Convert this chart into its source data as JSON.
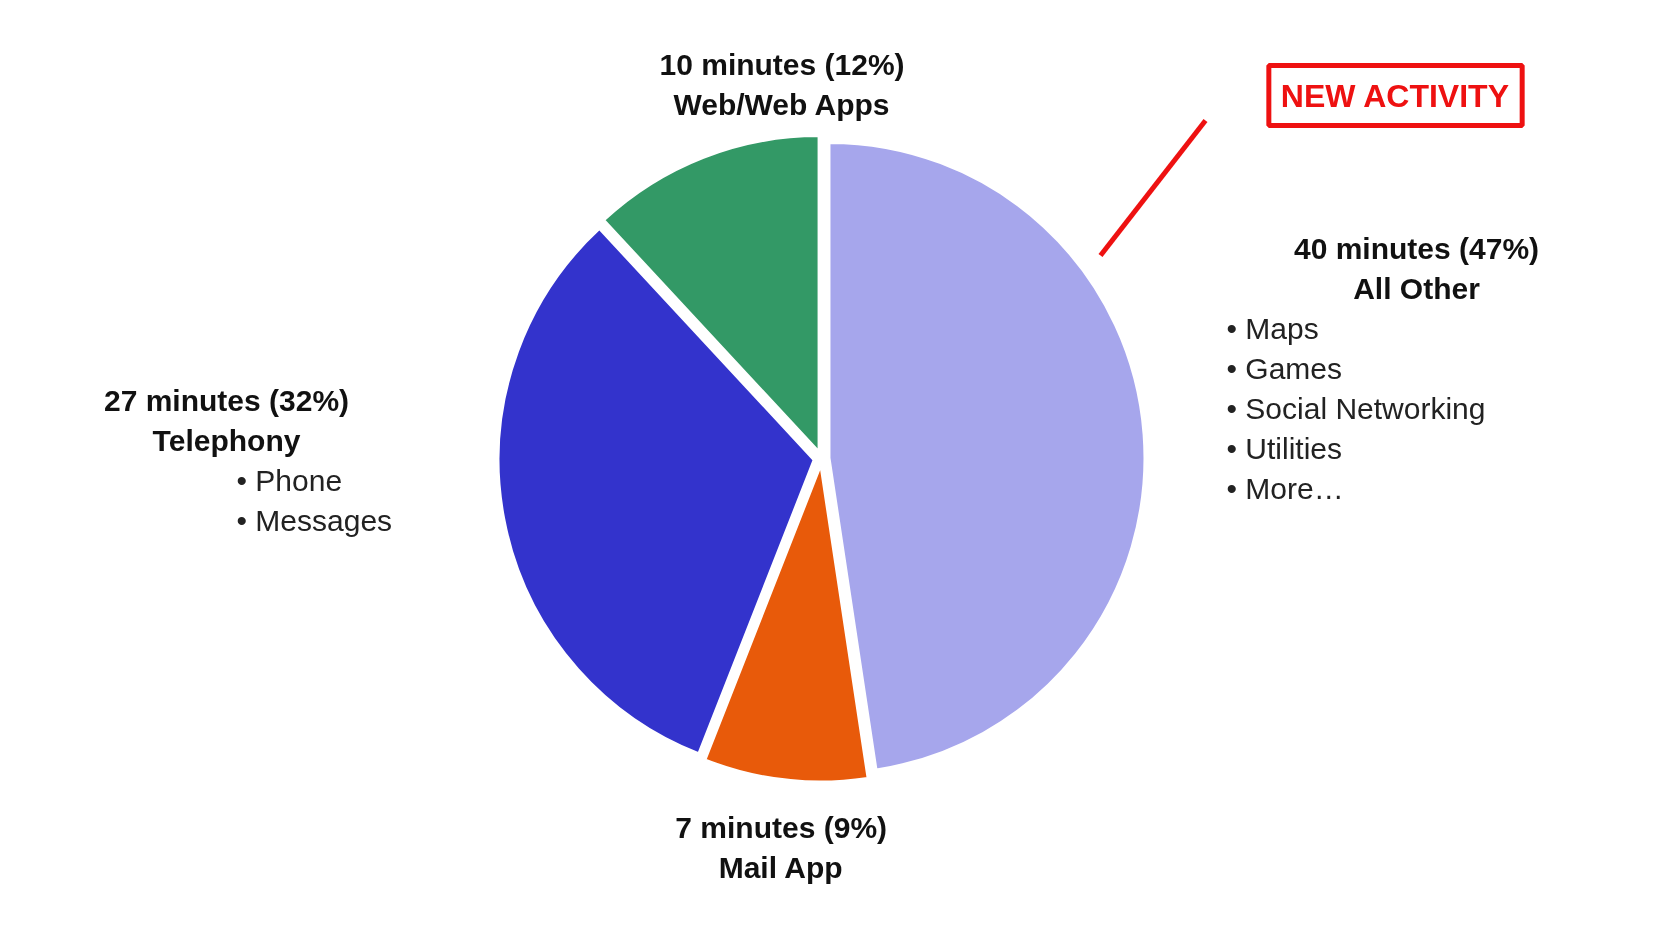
{
  "chart_data": {
    "type": "pie",
    "categories": [
      "All Other",
      "Mail App",
      "Telephony",
      "Web/Web Apps"
    ],
    "values": [
      40,
      7,
      27,
      10
    ],
    "colors": [
      "#a6a6ec",
      "#e85a0a",
      "#3333cc",
      "#339966"
    ],
    "value_labels": [
      "40 minutes (47%)",
      "7 minutes (9%)",
      "27 minutes (32%)",
      "10 minutes (12%)"
    ],
    "annotations": [
      "NEW ACTIVITY",
      {
        "text": "• Maps",
        "x": "All Other"
      },
      {
        "text": "• Games",
        "x": "All Other"
      },
      {
        "text": "• Social Networking",
        "x": "All Other"
      },
      {
        "text": "• Utilities",
        "x": "All Other"
      },
      {
        "text": "• More…",
        "x": "All Other"
      },
      {
        "text": "• Phone",
        "x": "Telephony"
      },
      {
        "text": "• Messages",
        "x": "Telephony"
      }
    ]
  }
}
